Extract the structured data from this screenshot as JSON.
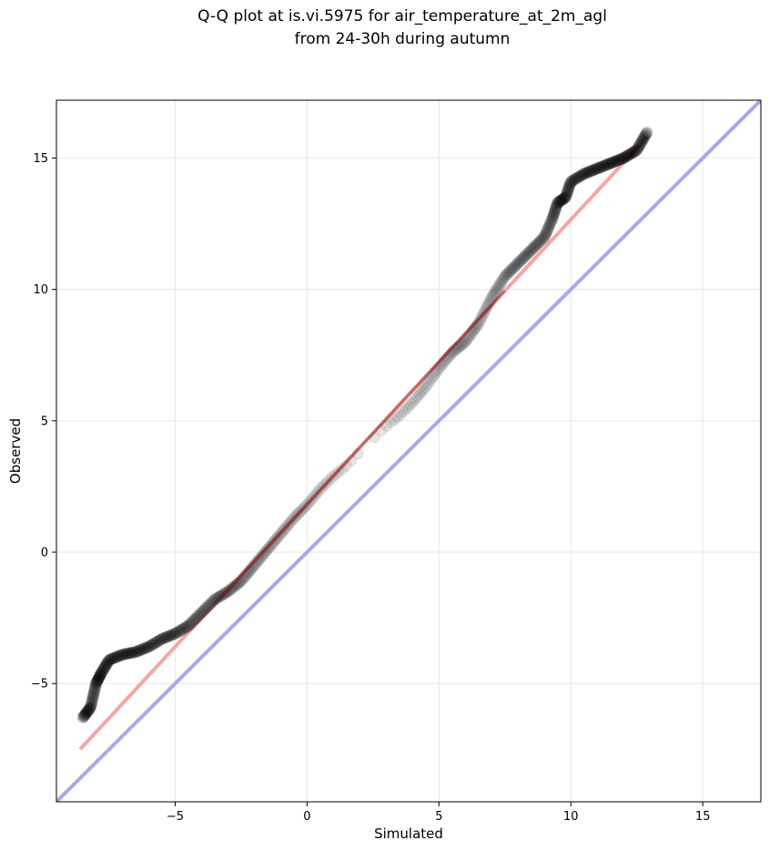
{
  "chart_data": {
    "type": "scatter",
    "title_lines": [
      "Q-Q plot at is.vi.5975 for air_temperature_at_2m_agl",
      "from 24-30h during autumn"
    ],
    "xlabel": "Simulated",
    "ylabel": "Observed",
    "xlim": [
      -9.5,
      17.2
    ],
    "ylim": [
      -9.5,
      17.2
    ],
    "xticks": [
      -5,
      0,
      5,
      10,
      15
    ],
    "yticks": [
      -5,
      0,
      5,
      10,
      15
    ],
    "xtick_labels": [
      "−5",
      "0",
      "5",
      "10",
      "15"
    ],
    "ytick_labels": [
      "−5",
      "0",
      "5",
      "10",
      "15"
    ],
    "grid": true,
    "colors": {
      "points": "#000000",
      "fit_line": "#f4a6a6",
      "identity_line": "#a8a8f0",
      "dense_fit": "#8b1a1a"
    },
    "reference_lines": [
      {
        "role": "identity",
        "x": [
          -9.5,
          17.2
        ],
        "y": [
          -9.5,
          17.2
        ],
        "color": "#a8a8f0"
      },
      {
        "role": "fit",
        "x": [
          -8.6,
          12.9
        ],
        "y": [
          -7.5,
          15.8
        ],
        "color": "#f4a6a6"
      }
    ],
    "quantile_knots": {
      "x": [
        -8.5,
        -8.2,
        -8.0,
        -7.8,
        -7.5,
        -7.0,
        -6.5,
        -6.0,
        -5.5,
        -5.0,
        -4.5,
        -4.0,
        -3.5,
        -3.0,
        -2.5,
        -2.0,
        -1.5,
        -1.0,
        -0.5,
        0.0,
        0.5,
        1.0,
        1.5,
        2.0,
        2.5,
        3.0,
        3.5,
        4.0,
        4.5,
        5.0,
        5.5,
        6.0,
        6.5,
        7.0,
        7.5,
        8.0,
        8.5,
        9.0,
        9.3,
        9.5,
        9.8,
        10.0,
        10.5,
        11.0,
        11.5,
        12.0,
        12.5,
        12.9
      ],
      "y": [
        -6.3,
        -5.9,
        -5.0,
        -4.6,
        -4.1,
        -3.9,
        -3.8,
        -3.6,
        -3.3,
        -3.1,
        -2.8,
        -2.3,
        -1.8,
        -1.5,
        -1.1,
        -0.5,
        0.1,
        0.7,
        1.3,
        1.8,
        2.4,
        2.9,
        3.3,
        3.8,
        4.3,
        4.8,
        5.2,
        5.7,
        6.3,
        7.0,
        7.6,
        8.0,
        8.7,
        9.7,
        10.5,
        11.0,
        11.5,
        12.0,
        12.7,
        13.3,
        13.5,
        14.1,
        14.4,
        14.6,
        14.8,
        15.0,
        15.3,
        16.0
      ]
    },
    "point_count": 720
  }
}
